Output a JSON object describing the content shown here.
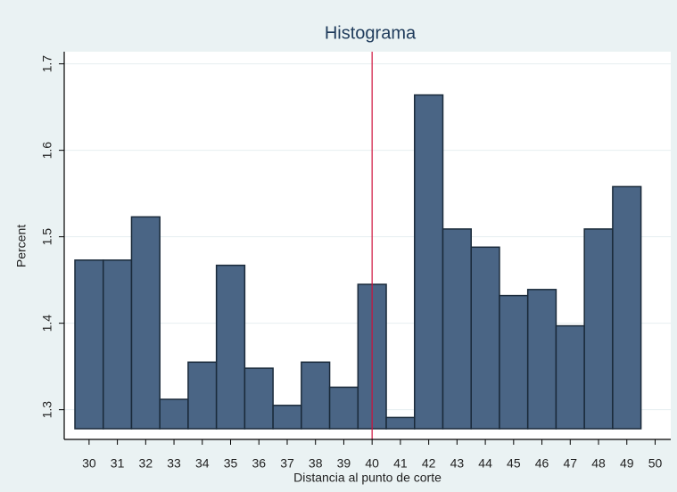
{
  "chart_data": {
    "type": "histogram",
    "title": "Histograma",
    "x_label": "Distancia al punto de corte",
    "y_label": "Percent",
    "bins": [
      29.5,
      30.5,
      31.5,
      32.5,
      33.5,
      34.5,
      35.5,
      36.5,
      37.5,
      38.5,
      39.5,
      40.5,
      41.5,
      42.5,
      43.5,
      44.5,
      45.5,
      46.5,
      47.5,
      48.5,
      49.5
    ],
    "values": [
      1.473,
      1.473,
      1.523,
      1.312,
      1.355,
      1.467,
      1.348,
      1.305,
      1.355,
      1.326,
      1.445,
      1.291,
      1.664,
      1.509,
      1.488,
      1.432,
      1.439,
      1.397,
      1.509,
      1.558
    ],
    "color": "#4a6585",
    "edge_color": "#1a2a3a",
    "xlim": [
      29.5,
      50.3
    ],
    "xticks": [
      30,
      31,
      32,
      33,
      34,
      35,
      36,
      37,
      38,
      39,
      40,
      41,
      42,
      43,
      44,
      45,
      46,
      47,
      48,
      49,
      50
    ],
    "ylim": [
      1.278,
      1.712
    ],
    "yticks": [
      1.3,
      1.4,
      1.5,
      1.6,
      1.7
    ],
    "grid": true,
    "xline": 40,
    "xline_color": "#d0103a"
  }
}
